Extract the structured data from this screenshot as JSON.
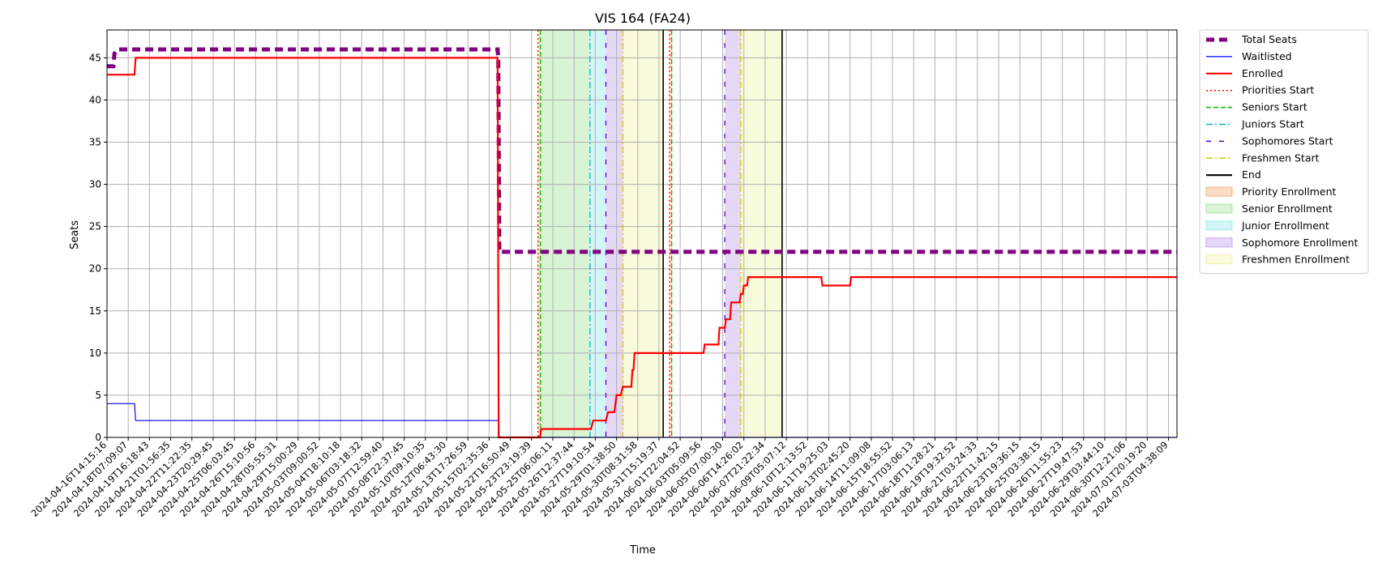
{
  "chart_data": {
    "type": "line",
    "title": "VIS 164 (FA24)",
    "xlabel": "Time",
    "ylabel": "Seats",
    "x_range": [
      "2024-04-16T14:15:16",
      "2024-07-03T14:00:00"
    ],
    "ylim": [
      0,
      48.3
    ],
    "y_ticks": [
      0,
      5,
      10,
      15,
      20,
      25,
      30,
      35,
      40,
      45
    ],
    "x_tick_labels": [
      "2024-04-16T14:15:16",
      "2024-04-18T07:09:07",
      "2024-04-19T16:18:43",
      "2024-04-21T01:56:35",
      "2024-04-22T11:22:35",
      "2024-04-23T20:29:45",
      "2024-04-25T06:03:45",
      "2024-04-26T15:10:56",
      "2024-04-28T05:55:31",
      "2024-04-29T15:00:29",
      "2024-05-03T09:00:52",
      "2024-05-04T18:10:18",
      "2024-05-06T03:18:32",
      "2024-05-07T12:59:40",
      "2024-05-08T22:37:45",
      "2024-05-10T09:10:35",
      "2024-05-12T06:43:30",
      "2024-05-13T17:26:59",
      "2024-05-15T02:35:36",
      "2024-05-22T16:50:49",
      "2024-05-23T23:19:39",
      "2024-05-25T06:06:11",
      "2024-05-26T12:37:44",
      "2024-05-27T19:10:54",
      "2024-05-29T01:38:50",
      "2024-05-30T08:31:58",
      "2024-05-31T15:19:37",
      "2024-06-01T22:04:52",
      "2024-06-03T05:09:56",
      "2024-06-05T07:00:30",
      "2024-06-06T14:26:02",
      "2024-06-07T21:22:34",
      "2024-06-09T05:07:12",
      "2024-06-10T12:13:52",
      "2024-06-11T19:25:03",
      "2024-06-13T02:45:20",
      "2024-06-14T11:09:08",
      "2024-06-15T18:55:52",
      "2024-06-17T03:06:13",
      "2024-06-18T11:28:21",
      "2024-06-19T19:32:52",
      "2024-06-21T03:24:33",
      "2024-06-22T11:42:15",
      "2024-06-23T19:36:15",
      "2024-06-25T03:38:15",
      "2024-06-26T11:55:23",
      "2024-06-27T19:47:53",
      "2024-06-29T03:44:10",
      "2024-06-30T12:21:06",
      "2024-07-01T20:19:20",
      "2024-07-03T04:38:09"
    ],
    "grid": true,
    "legend_position": "outside-right",
    "series": [
      {
        "name": "Total Seats",
        "color": "#800080",
        "style": "dashed-thick",
        "x": [
          0,
          0.3,
          0.35,
          0.5,
          18.4,
          18.43,
          18.48,
          50.4
        ],
        "y": [
          44,
          44,
          45.5,
          46,
          46,
          45,
          22,
          22
        ]
      },
      {
        "name": "Waitlisted",
        "color": "#0000ff",
        "style": "solid-thin",
        "x": [
          0,
          1.3,
          1.32,
          1.35,
          18.45,
          18.47,
          50.4
        ],
        "y": [
          4,
          4,
          3,
          2,
          2,
          0,
          0
        ]
      },
      {
        "name": "Enrolled",
        "color": "#ff0000",
        "style": "solid",
        "x": [
          0,
          1.3,
          1.32,
          1.35,
          18.4,
          18.45,
          20.4,
          20.45,
          22.8,
          22.9,
          23.5,
          23.6,
          23.9,
          24.0,
          24.2,
          24.3,
          24.7,
          24.75,
          24.8,
          24.85,
          28.1,
          28.15,
          28.8,
          28.85,
          29.1,
          29.15,
          29.35,
          29.4,
          29.8,
          29.85,
          29.95,
          30.0,
          30.15,
          30.2,
          33.65,
          33.7,
          35.0,
          35.05,
          50.4
        ],
        "y": [
          43,
          43,
          44,
          45,
          45,
          0,
          0,
          1,
          1,
          2,
          2,
          3,
          3,
          5,
          5,
          6,
          6,
          8,
          8,
          10,
          10,
          11,
          11,
          13,
          13,
          14,
          14,
          16,
          16,
          17,
          17,
          18,
          18,
          19,
          19,
          18,
          18,
          19,
          19
        ]
      }
    ],
    "vertical_lines": [
      {
        "name": "Priorities Start",
        "color": "#ff0000",
        "style": "dotted",
        "x": [
          20.3,
          26.5
        ]
      },
      {
        "name": "Seniors Start",
        "color": "#00bb00",
        "style": "dashed",
        "x": [
          20.42,
          26.6
        ]
      },
      {
        "name": "Juniors Start",
        "color": "#00bbbb",
        "style": "dashdot",
        "x": [
          22.75
        ]
      },
      {
        "name": "Sophomores Start",
        "color": "#5500cc",
        "style": "loosedash",
        "x": [
          23.5,
          29.1
        ]
      },
      {
        "name": "Freshmen Start",
        "color": "#cccc00",
        "style": "dashdot",
        "x": [
          24.3,
          29.85
        ]
      },
      {
        "name": "End",
        "color": "#000000",
        "style": "solid",
        "x": [
          26.2,
          31.8
        ]
      }
    ],
    "spans": [
      {
        "name": "Priority Enrollment",
        "color": "#f4b183",
        "x0": 20.3,
        "x1": 20.42
      },
      {
        "name": "Priority Enrollment",
        "color": "#f4b183",
        "x0": 26.5,
        "x1": 26.6
      },
      {
        "name": "Senior Enrollment",
        "color": "#a8e6a1",
        "x0": 20.42,
        "x1": 22.75
      },
      {
        "name": "Junior Enrollment",
        "color": "#9de8ec",
        "x0": 22.75,
        "x1": 23.5
      },
      {
        "name": "Sophomore Enrollment",
        "color": "#c6a6ec",
        "x0": 23.5,
        "x1": 24.3
      },
      {
        "name": "Sophomore Enrollment",
        "color": "#c6a6ec",
        "x0": 29.1,
        "x1": 29.85
      },
      {
        "name": "Freshmen Enrollment",
        "color": "#f2f2b0",
        "x0": 24.3,
        "x1": 26.2
      },
      {
        "name": "Freshmen Enrollment",
        "color": "#f2f2b0",
        "x0": 29.85,
        "x1": 31.8
      }
    ],
    "legend": [
      {
        "label": "Total Seats",
        "kind": "line",
        "color": "#800080",
        "style": "dashed-thick"
      },
      {
        "label": "Waitlisted",
        "kind": "line",
        "color": "#0000ff",
        "style": "solid-thin"
      },
      {
        "label": "Enrolled",
        "kind": "line",
        "color": "#ff0000",
        "style": "solid"
      },
      {
        "label": "Priorities Start",
        "kind": "line",
        "color": "#ff0000",
        "style": "dotted"
      },
      {
        "label": "Seniors Start",
        "kind": "line",
        "color": "#00bb00",
        "style": "dashed"
      },
      {
        "label": "Juniors Start",
        "kind": "line",
        "color": "#00bbbb",
        "style": "dashdot"
      },
      {
        "label": "Sophomores Start",
        "kind": "line",
        "color": "#5500cc",
        "style": "loosedash"
      },
      {
        "label": "Freshmen Start",
        "kind": "line",
        "color": "#cccc00",
        "style": "dashdot"
      },
      {
        "label": "End",
        "kind": "line",
        "color": "#000000",
        "style": "solid"
      },
      {
        "label": "Priority Enrollment",
        "kind": "patch",
        "color": "#f4b183"
      },
      {
        "label": "Senior Enrollment",
        "kind": "patch",
        "color": "#a8e6a1"
      },
      {
        "label": "Junior Enrollment",
        "kind": "patch",
        "color": "#9de8ec"
      },
      {
        "label": "Sophomore Enrollment",
        "kind": "patch",
        "color": "#c6a6ec"
      },
      {
        "label": "Freshmen Enrollment",
        "kind": "patch",
        "color": "#f2f2b0"
      }
    ]
  }
}
